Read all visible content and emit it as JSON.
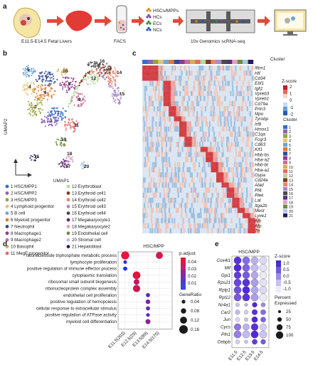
{
  "panels": {
    "a": "a",
    "b": "b",
    "c": "c",
    "d": "d",
    "e": "e"
  },
  "workflow": {
    "step1": "E11.5-E14.5 Fetal Livers",
    "step2": "FACS",
    "sorted": [
      "HSCs/MPPs",
      "HCs",
      "ECs",
      "NCs"
    ],
    "sorted_colors": [
      "#e8891a",
      "#7a3fb0",
      "#2e8b3e",
      "#2058c8"
    ],
    "step3": "10x Genomics scRNA-seq"
  },
  "umap": {
    "xlabel": "UMAP1",
    "ylabel": "UMAP2",
    "cluster_labels_shown": [
      "1",
      "2",
      "3",
      "4",
      "5",
      "6",
      "7",
      "8",
      "9",
      "10",
      "11",
      "12",
      "13",
      "14",
      "15",
      "16",
      "17",
      "18",
      "19",
      "20",
      "21"
    ]
  },
  "legend": [
    {
      "n": "1",
      "name": "HSC/MPP1",
      "color": "#2f6fc8"
    },
    {
      "n": "2",
      "name": "HSC/MPP2",
      "color": "#8c62b8"
    },
    {
      "n": "3",
      "name": "HSC/MPP3",
      "color": "#9aa13a"
    },
    {
      "n": "4",
      "name": "Lymphoid progenitor",
      "color": "#e3c47a"
    },
    {
      "n": "5",
      "name": "B cell",
      "color": "#6fa3d6"
    },
    {
      "n": "6",
      "name": "Myeloid progenitor",
      "color": "#e07a2f"
    },
    {
      "n": "7",
      "name": "Neutrophil",
      "color": "#2f4a9a"
    },
    {
      "n": "8",
      "name": "Macrophage1",
      "color": "#8e3c8c"
    },
    {
      "n": "9",
      "name": "Macrophage2",
      "color": "#c56f9a"
    },
    {
      "n": "10",
      "name": "Basophil",
      "color": "#d2b04a"
    },
    {
      "n": "11",
      "name": "MegE progenitor",
      "color": "#e06b6b"
    },
    {
      "n": "12",
      "name": "Erythroblast",
      "color": "#b7d79b"
    },
    {
      "n": "13",
      "name": "Erythroid cell1",
      "color": "#7b3b2a"
    },
    {
      "n": "14",
      "name": "Erythroid cell2",
      "color": "#e8876a"
    },
    {
      "n": "15",
      "name": "Erythroid cell3",
      "color": "#a58bc9"
    },
    {
      "n": "16",
      "name": "Erythroid cell4",
      "color": "#4a4a4a"
    },
    {
      "n": "17",
      "name": "Megakaryocyte1",
      "color": "#5a2e7a"
    },
    {
      "n": "18",
      "name": "Megakaryocyte2",
      "color": "#e0a0c4"
    },
    {
      "n": "19",
      "name": "Endothelial cell",
      "color": "#6e8e3a"
    },
    {
      "n": "20",
      "name": "Stromal cell",
      "color": "#a8c8e8"
    },
    {
      "n": "21",
      "name": "Hepatoblast",
      "color": "#2a1a5a"
    }
  ],
  "heatmap": {
    "cluster_label": "Cluster",
    "zscore_label": "Z-score",
    "zscore_ticks": [
      "2",
      "1",
      "0",
      "-1",
      "-2"
    ],
    "genes": [
      "Ifitm1",
      "Hlf",
      "Cd34",
      "Ebf1",
      "Igll1",
      "Vpreb3",
      "Vpreb1",
      "Cd79a",
      "Prtn3",
      "Mpo",
      "Tyrobp",
      "Irf8",
      "Hmox1",
      "C1qa",
      "Fcgr3",
      "Cd63",
      "Klf1",
      "Hbb-bs",
      "Hba-a2",
      "Hbb-bt",
      "Hba-a1",
      "Gypa",
      "Cd24a",
      "Alad",
      "Pf4",
      "Plek",
      "Lat",
      "Itga2b",
      "Mest",
      "Lyve1",
      "Alb",
      "Afp",
      "Ttr"
    ]
  },
  "dotplot_d": {
    "title": "HSC/MPP",
    "padj_label": "p.adjust",
    "padj_ticks": [
      "0.04",
      "0.03",
      "0.02",
      "0.01"
    ],
    "ratio_label": "GeneRatio",
    "ratio_ticks": [
      "0.04",
      "0.08",
      "0.12",
      "0.16"
    ],
    "x": [
      "E11.5(203)",
      "E12.5(29)",
      "E13.5(89)",
      "E14.5(175)"
    ],
    "terms": [
      "ribonucleoside triphosphate metabolic process",
      "lymphocyte proliferation",
      "positive regulation of immune effector process",
      "cytoplasmic translation",
      "ribosomal small subunit biogenesis",
      "ribonucleoprotein complex assembly",
      "endothelial cell proliferation",
      "positive regulation of hemopoiesis",
      "cellular response to extracellular stimulus",
      "positive regulation of ATPase activity",
      "myeloid cell differentiation"
    ]
  },
  "dotplot_e": {
    "title": "HSC/MPP",
    "zscore_label": "Z-score",
    "zscore_ticks": [
      "1.0",
      "0.5",
      "0.0",
      "-0.5",
      "-1.0"
    ],
    "size_label": "Percent Expressed",
    "size_ticks": [
      "25",
      "50",
      "75",
      "100"
    ],
    "x": [
      "E11.5",
      "E12.5",
      "E13.5",
      "E14.5"
    ],
    "genes": [
      "Cox4i1",
      "Mif",
      "Gpi1",
      "Rps21",
      "Rplp1",
      "Rpl12",
      "Nr4a1",
      "Car2",
      "Jun",
      "Cycs",
      "Pfn1",
      "Cebpb"
    ]
  },
  "chart_data": [
    {
      "type": "scatter",
      "title": "",
      "xlabel": "GeneRatio / timepoint",
      "ylabel": "",
      "categories": [
        "E11.5(203)",
        "E12.5(29)",
        "E13.5(89)",
        "E14.5(175)"
      ],
      "points": [
        {
          "term": 0,
          "x": 0,
          "ratio": 0.15,
          "padj": 0.005
        },
        {
          "term": 0,
          "x": 3,
          "ratio": 0.12,
          "padj": 0.008
        },
        {
          "term": 1,
          "x": 0,
          "ratio": 0.04,
          "padj": 0.035
        },
        {
          "term": 2,
          "x": 0,
          "ratio": 0.05,
          "padj": 0.04
        },
        {
          "term": 3,
          "x": 1,
          "ratio": 0.14,
          "padj": 0.006
        },
        {
          "term": 4,
          "x": 1,
          "ratio": 0.09,
          "padj": 0.012
        },
        {
          "term": 5,
          "x": 1,
          "ratio": 0.13,
          "padj": 0.01
        },
        {
          "term": 6,
          "x": 2,
          "ratio": 0.05,
          "padj": 0.03
        },
        {
          "term": 7,
          "x": 2,
          "ratio": 0.06,
          "padj": 0.025
        },
        {
          "term": 8,
          "x": 2,
          "ratio": 0.05,
          "padj": 0.028
        },
        {
          "term": 9,
          "x": 2,
          "ratio": 0.04,
          "padj": 0.03
        },
        {
          "term": 10,
          "x": 2,
          "ratio": 0.07,
          "padj": 0.022
        }
      ]
    },
    {
      "type": "scatter",
      "title": "",
      "categories": [
        "E11.5",
        "E12.5",
        "E13.5",
        "E14.5"
      ],
      "values": [
        [
          0.9,
          0.3,
          -0.4,
          -0.8
        ],
        [
          1.0,
          0.4,
          -0.5,
          -0.9
        ],
        [
          0.8,
          0.5,
          -0.3,
          -1.0
        ],
        [
          0.7,
          0.9,
          -0.2,
          -0.9
        ],
        [
          0.6,
          1.0,
          -0.3,
          -0.8
        ],
        [
          0.5,
          0.9,
          -0.2,
          -1.0
        ],
        [
          -0.6,
          -0.4,
          1.0,
          0.0
        ],
        [
          -0.5,
          -0.7,
          0.9,
          0.3
        ],
        [
          -0.8,
          -0.6,
          1.0,
          0.4
        ],
        [
          0.2,
          -0.4,
          0.9,
          -0.7
        ],
        [
          0.1,
          -0.5,
          1.0,
          -0.6
        ],
        [
          -0.7,
          -0.6,
          0.8,
          0.5
        ]
      ],
      "pct": [
        [
          100,
          100,
          100,
          100
        ],
        [
          100,
          100,
          100,
          100
        ],
        [
          95,
          95,
          95,
          95
        ],
        [
          100,
          100,
          100,
          100
        ],
        [
          100,
          100,
          100,
          100
        ],
        [
          100,
          100,
          100,
          100
        ],
        [
          40,
          30,
          60,
          50
        ],
        [
          55,
          45,
          70,
          65
        ],
        [
          50,
          40,
          75,
          65
        ],
        [
          90,
          85,
          95,
          90
        ],
        [
          100,
          100,
          100,
          100
        ],
        [
          45,
          35,
          65,
          60
        ]
      ]
    }
  ]
}
